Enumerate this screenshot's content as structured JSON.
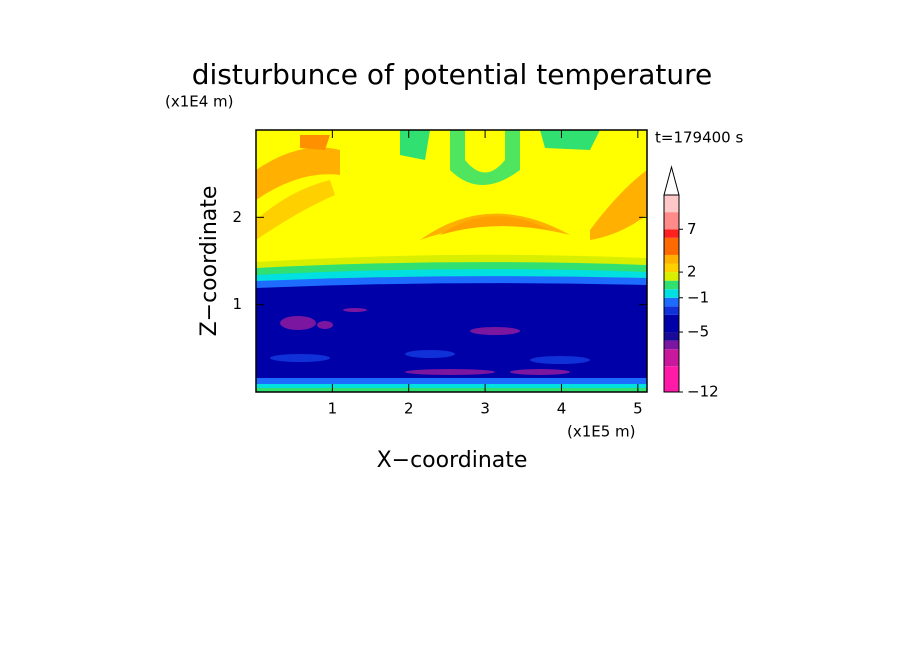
{
  "chart_data": {
    "type": "contour",
    "title": "disturbunce of potential temperature",
    "y_unit": "(x1E4 m)",
    "x_unit": "(x1E5 m)",
    "time_label": "t=179400 s",
    "xlabel": "X−coordinate",
    "ylabel": "Z−coordinate",
    "xlim": [
      0,
      5.12
    ],
    "ylim": [
      0,
      3
    ],
    "xticks": [
      1,
      2,
      3,
      4,
      5
    ],
    "yticks": [
      1,
      2
    ],
    "colorbar": {
      "levels": [
        -12,
        -9,
        -7,
        -6,
        -5,
        -3,
        -2,
        -1,
        0,
        1,
        2,
        3,
        4,
        6,
        7,
        9,
        11
      ],
      "colors": [
        "#ff1aa8",
        "#c8189c",
        "#7a16a0",
        "#1a0a98",
        "#0000a8",
        "#1030d8",
        "#1e6cff",
        "#00e0e0",
        "#30e070",
        "#d8f000",
        "#ffd000",
        "#ffb000",
        "#ff6a00",
        "#ff2020",
        "#ff8a8a",
        "#ffc8c8"
      ],
      "ticks": [
        {
          "value": -12,
          "label": "−12"
        },
        {
          "value": -5,
          "label": "−5"
        },
        {
          "value": -1,
          "label": "−1"
        },
        2,
        7
      ],
      "extend": "max"
    }
  }
}
